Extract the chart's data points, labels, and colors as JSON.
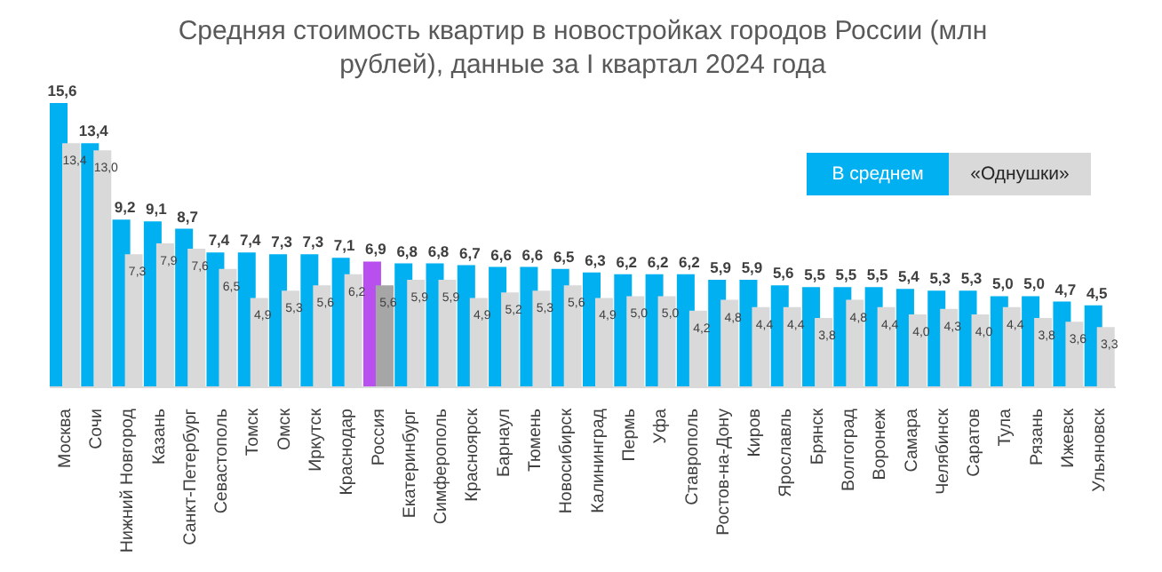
{
  "chart_data": {
    "type": "bar",
    "title": "Средняя стоимость квартир в новостройках городов России (млн рублей), данные за I квартал 2024 года",
    "categories": [
      "Москва",
      "Сочи",
      "Нижний Новгород",
      "Казань",
      "Санкт-Петербург",
      "Севастополь",
      "Томск",
      "Омск",
      "Иркутск",
      "Краснодар",
      "Россия",
      "Екатеринбург",
      "Симферополь",
      "Красноярск",
      "Барнаул",
      "Тюмень",
      "Новосибирск",
      "Калининград",
      "Пермь",
      "Уфа",
      "Ставрополь",
      "Ростов-на-Дону",
      "Киров",
      "Ярославль",
      "Брянск",
      "Волгоград",
      "Воронеж",
      "Самара",
      "Челябинск",
      "Саратов",
      "Тула",
      "Рязань",
      "Ижевск",
      "Ульяновск"
    ],
    "legend": "top right",
    "series": [
      {
        "name": "В среднем",
        "color": "#00b0f0",
        "colors": [
          "#00b0f0",
          "#00b0f0",
          "#00b0f0",
          "#00b0f0",
          "#00b0f0",
          "#00b0f0",
          "#00b0f0",
          "#00b0f0",
          "#00b0f0",
          "#00b0f0",
          "#b84fef",
          "#00b0f0",
          "#00b0f0",
          "#00b0f0",
          "#00b0f0",
          "#00b0f0",
          "#00b0f0",
          "#00b0f0",
          "#00b0f0",
          "#00b0f0",
          "#00b0f0",
          "#00b0f0",
          "#00b0f0",
          "#00b0f0",
          "#00b0f0",
          "#00b0f0",
          "#00b0f0",
          "#00b0f0",
          "#00b0f0",
          "#00b0f0",
          "#00b0f0",
          "#00b0f0",
          "#00b0f0",
          "#00b0f0"
        ],
        "values": [
          15.6,
          13.4,
          9.2,
          9.1,
          8.7,
          7.4,
          7.4,
          7.3,
          7.3,
          7.1,
          6.9,
          6.8,
          6.8,
          6.7,
          6.6,
          6.6,
          6.5,
          6.3,
          6.2,
          6.2,
          6.2,
          5.9,
          5.9,
          5.6,
          5.5,
          5.5,
          5.5,
          5.4,
          5.3,
          5.3,
          5.0,
          5.0,
          4.7,
          4.5
        ],
        "value_labels": [
          "15,6",
          "13,4",
          "9,2",
          "9,1",
          "8,7",
          "7,4",
          "7,4",
          "7,3",
          "7,3",
          "7,1",
          "6,9",
          "6,8",
          "6,8",
          "6,7",
          "6,6",
          "6,6",
          "6,5",
          "6,3",
          "6,2",
          "6,2",
          "6,2",
          "5,9",
          "5,9",
          "5,6",
          "5,5",
          "5,5",
          "5,5",
          "5,4",
          "5,3",
          "5,3",
          "5,0",
          "5,0",
          "4,7",
          "4,5"
        ]
      },
      {
        "name": "«Однушки»",
        "color": "#d9d9d9",
        "colors": [
          "#d9d9d9",
          "#d9d9d9",
          "#d9d9d9",
          "#d9d9d9",
          "#d9d9d9",
          "#d9d9d9",
          "#d9d9d9",
          "#d9d9d9",
          "#d9d9d9",
          "#d9d9d9",
          "#a6a6a6",
          "#d9d9d9",
          "#d9d9d9",
          "#d9d9d9",
          "#d9d9d9",
          "#d9d9d9",
          "#d9d9d9",
          "#d9d9d9",
          "#d9d9d9",
          "#d9d9d9",
          "#d9d9d9",
          "#d9d9d9",
          "#d9d9d9",
          "#d9d9d9",
          "#d9d9d9",
          "#d9d9d9",
          "#d9d9d9",
          "#d9d9d9",
          "#d9d9d9",
          "#d9d9d9",
          "#d9d9d9",
          "#d9d9d9",
          "#d9d9d9",
          "#d9d9d9"
        ],
        "values": [
          13.4,
          13.0,
          7.3,
          7.9,
          7.6,
          6.5,
          4.9,
          5.3,
          5.6,
          6.2,
          5.6,
          5.9,
          5.9,
          4.9,
          5.2,
          5.3,
          5.6,
          4.9,
          5.0,
          5.0,
          4.2,
          4.8,
          4.4,
          4.4,
          3.8,
          4.8,
          4.4,
          4.0,
          4.3,
          4.0,
          4.4,
          3.8,
          3.6,
          3.3
        ],
        "value_labels": [
          "13,4",
          "13,0",
          "7,3",
          "7,9",
          "7,6",
          "6,5",
          "4,9",
          "5,3",
          "5,6",
          "6,2",
          "5,6",
          "5,9",
          "5,9",
          "4,9",
          "5,2",
          "5,3",
          "5,6",
          "4,9",
          "5,0",
          "5,0",
          "4,2",
          "4,8",
          "4,4",
          "4,4",
          "3,8",
          "4,8",
          "4,4",
          "4,0",
          "4,3",
          "4,0",
          "4,4",
          "3,8",
          "3,6",
          "3,3"
        ]
      }
    ]
  }
}
